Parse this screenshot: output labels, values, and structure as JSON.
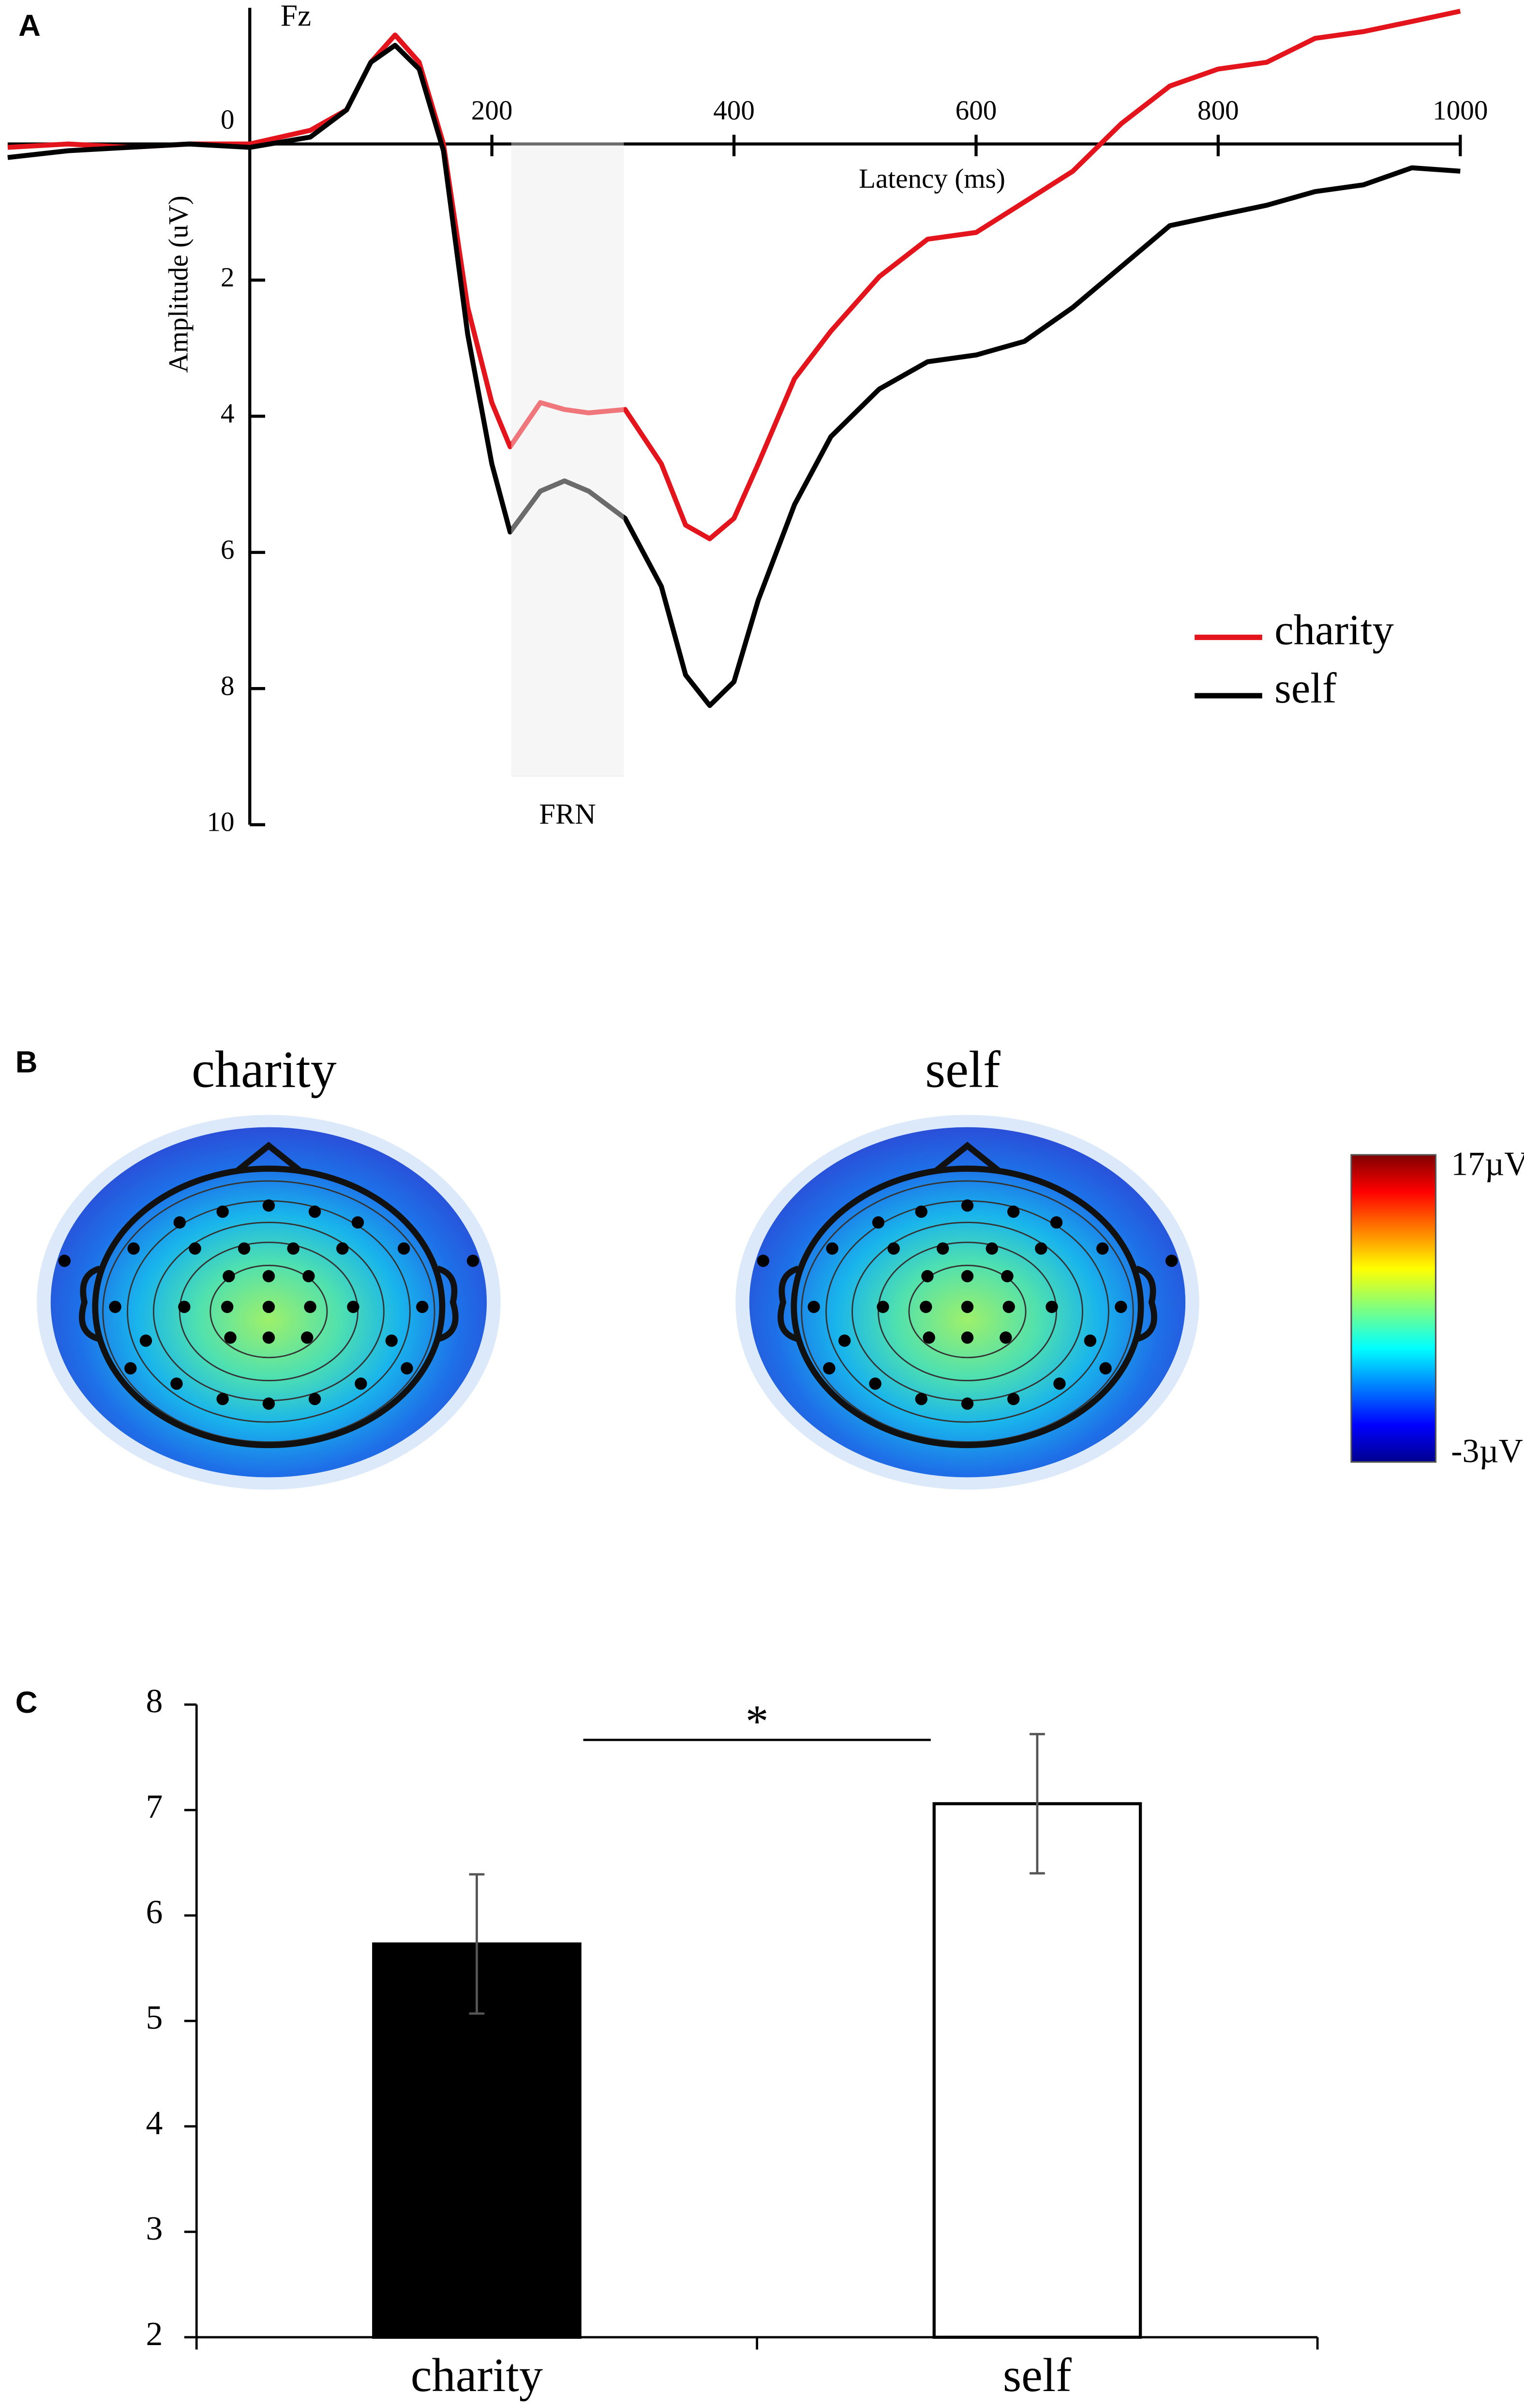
{
  "chart_data": [
    {
      "type": "line",
      "panel_label": "A",
      "title": "Fz",
      "xlabel": "Latency (ms)",
      "ylabel": "Amplitude (uV)",
      "xlim": [
        -200,
        1000
      ],
      "xticks": [
        200,
        400,
        600,
        800,
        1000
      ],
      "ylim": [
        -2,
        10
      ],
      "yticks": [
        0,
        2,
        4,
        6,
        8,
        10
      ],
      "y_inverted": true,
      "shaded_region": {
        "label": "FRN",
        "x": [
          216,
          309
        ]
      },
      "x": [
        -200,
        -150,
        -100,
        -50,
        0,
        50,
        80,
        100,
        120,
        140,
        160,
        180,
        200,
        215,
        240,
        260,
        280,
        310,
        340,
        360,
        380,
        400,
        420,
        450,
        480,
        520,
        560,
        600,
        640,
        680,
        720,
        760,
        800,
        840,
        880,
        920,
        960,
        1000
      ],
      "series": [
        {
          "name": "charity",
          "color": "#e3141c",
          "values": [
            0.05,
            0,
            0.05,
            0,
            0,
            -0.2,
            -0.5,
            -1.2,
            -1.6,
            -1.2,
            0,
            2.4,
            3.8,
            4.45,
            3.8,
            3.9,
            3.95,
            3.9,
            4.7,
            5.6,
            5.8,
            5.5,
            4.7,
            3.45,
            2.75,
            1.95,
            1.4,
            1.3,
            0.85,
            0.4,
            -0.3,
            -0.85,
            -1.1,
            -1.2,
            -1.55,
            -1.65,
            -1.8,
            -1.95
          ]
        },
        {
          "name": "self",
          "color": "#000000",
          "values": [
            0.2,
            0.1,
            0.05,
            0,
            0.05,
            -0.1,
            -0.5,
            -1.2,
            -1.45,
            -1.1,
            0.1,
            2.8,
            4.7,
            5.7,
            5.1,
            4.95,
            5.1,
            5.5,
            6.5,
            7.8,
            8.25,
            7.9,
            6.7,
            5.3,
            4.3,
            3.6,
            3.2,
            3.1,
            2.9,
            2.4,
            1.8,
            1.2,
            1.05,
            0.9,
            0.7,
            0.6,
            0.35,
            0.4
          ]
        }
      ],
      "legend": "lower right"
    },
    {
      "type": "topomap",
      "panel_label": "B",
      "maps": [
        "charity",
        "self"
      ],
      "colorbar": {
        "clim": [
          -3,
          17
        ],
        "ticks": [
          {
            "value": 17,
            "label": "17µV"
          },
          {
            "value": -3,
            "label": "-3µV"
          }
        ]
      }
    },
    {
      "type": "bar",
      "panel_label": "C",
      "categories": [
        "charity",
        "self"
      ],
      "values": [
        5.73,
        7.06
      ],
      "errors": [
        0.66,
        0.66
      ],
      "colors": [
        "#000000",
        "#ffffff"
      ],
      "ylim": [
        2,
        8
      ],
      "yticks": [
        2,
        3,
        4,
        5,
        6,
        7,
        8
      ],
      "significance": "*"
    }
  ]
}
